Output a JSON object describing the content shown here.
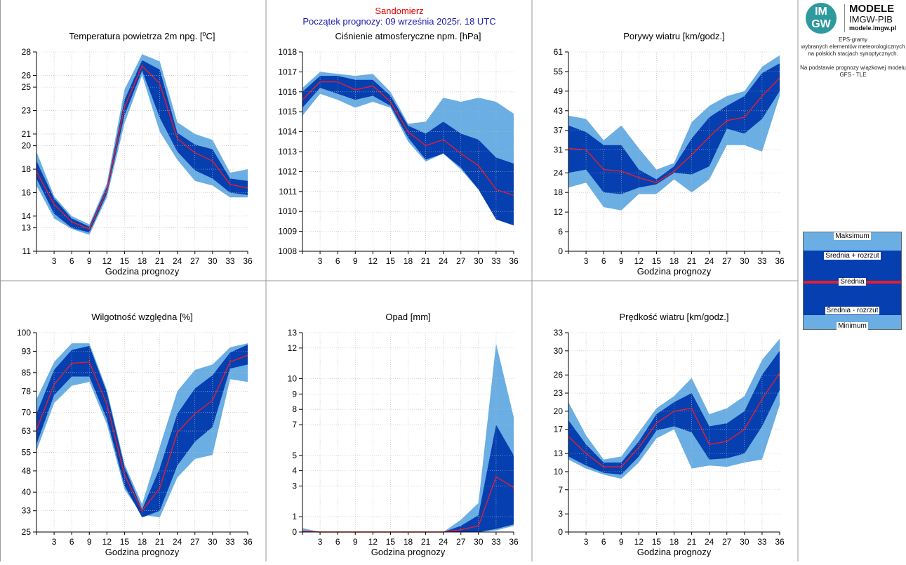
{
  "header": {
    "location": "Sandomierz",
    "forecast_start": "Początek prognozy: 09 września 2025r. 18 UTC"
  },
  "logo": {
    "badge_top": "IM",
    "badge_bottom": "GW",
    "title": "MODELE",
    "subtitle": "IMGW-PIB",
    "url": "modele.imgw.pl"
  },
  "description": {
    "line1": "EPS-gramy",
    "line2": "wybranych elementów meteorologicznych",
    "line3": "na polskich stacjach  synoptycznych.",
    "line4": "Na podstawie prognozy wiązkowej modelu",
    "line5": "GFS - TLE"
  },
  "legend": {
    "max": "Maksimum",
    "mean_plus": "Średnia + rozrzut",
    "mean": "Średnia",
    "mean_minus": "Średnia - rozrzut",
    "min": "Minimum"
  },
  "colors": {
    "outer": "#6aaee3",
    "inner": "#063fb0",
    "mean": "#e51e2e"
  },
  "chart_data": [
    {
      "type": "area",
      "title": "Temperatura powietrza 2m npg. [",
      "title_sup": "o",
      "title_end": "C]",
      "xlabel": "Godzina prognozy",
      "x": [
        0,
        3,
        6,
        9,
        12,
        15,
        18,
        21,
        24,
        27,
        30,
        33,
        36
      ],
      "yticks": [
        11,
        13,
        14,
        16,
        18,
        20,
        21,
        23,
        25,
        26,
        28
      ],
      "ylim": [
        11,
        28
      ],
      "min": [
        16.6,
        13.8,
        12.9,
        12.4,
        15.6,
        21.9,
        26.0,
        21.2,
        18.8,
        17.0,
        16.6,
        15.6,
        15.6
      ],
      "lo": [
        17.2,
        14.2,
        13.0,
        12.6,
        15.9,
        22.6,
        26.4,
        22.4,
        19.5,
        17.9,
        17.2,
        16.0,
        15.8
      ],
      "mean": [
        17.8,
        15.0,
        13.5,
        12.9,
        16.2,
        23.3,
        26.8,
        25.3,
        20.6,
        19.4,
        18.7,
        16.7,
        16.4
      ],
      "hi": [
        18.7,
        15.5,
        13.8,
        13.1,
        16.5,
        23.9,
        27.3,
        26.5,
        21.1,
        20.1,
        19.7,
        17.2,
        17.0
      ],
      "max": [
        19.5,
        15.7,
        14.0,
        13.3,
        16.8,
        24.8,
        27.8,
        27.2,
        22.0,
        21.0,
        20.5,
        17.7,
        18.0
      ]
    },
    {
      "type": "area",
      "title": "Ciśnienie atmosferyczne npm. [hPa]",
      "title_sup": "",
      "title_end": "",
      "xlabel": "",
      "x": [
        0,
        3,
        6,
        9,
        12,
        15,
        18,
        21,
        24,
        27,
        30,
        33,
        36
      ],
      "yticks": [
        1008,
        1009,
        1010,
        1011,
        1012,
        1013,
        1014,
        1015,
        1016,
        1017,
        1018
      ],
      "ylim": [
        1008,
        1018
      ],
      "min": [
        1014.8,
        1015.9,
        1015.6,
        1015.2,
        1015.5,
        1015.2,
        1013.5,
        1012.5,
        1012.9,
        1012.1,
        1011.1,
        1009.6,
        1009.3
      ],
      "lo": [
        1015.2,
        1016.2,
        1015.9,
        1015.6,
        1015.8,
        1015.3,
        1013.7,
        1012.6,
        1012.9,
        1012.2,
        1011.1,
        1009.6,
        1009.3
      ],
      "mean": [
        1015.6,
        1016.5,
        1016.5,
        1016.1,
        1016.3,
        1015.5,
        1014.0,
        1013.3,
        1013.6,
        1012.9,
        1012.3,
        1011.1,
        1010.8
      ],
      "hi": [
        1016.0,
        1016.8,
        1016.8,
        1016.6,
        1016.6,
        1015.8,
        1014.3,
        1013.9,
        1014.5,
        1013.9,
        1013.6,
        1012.7,
        1012.4
      ],
      "max": [
        1016.2,
        1017.0,
        1016.9,
        1016.8,
        1016.9,
        1016.0,
        1014.4,
        1014.5,
        1015.7,
        1015.5,
        1015.7,
        1015.5,
        1014.9
      ]
    },
    {
      "type": "area",
      "title": "Porywy wiatru [km/godz.]",
      "title_sup": "",
      "title_end": "",
      "xlabel": "Godzina prognozy",
      "x": [
        0,
        3,
        6,
        9,
        12,
        15,
        18,
        21,
        24,
        27,
        30,
        33,
        36
      ],
      "yticks": [
        0,
        6,
        12,
        18,
        24,
        31,
        37,
        43,
        49,
        55,
        61
      ],
      "ylim": [
        0,
        61
      ],
      "min": [
        19.5,
        21.0,
        13.5,
        12.5,
        17.5,
        17.5,
        22.0,
        18.0,
        22.0,
        32.5,
        32.5,
        30.5,
        47.5
      ],
      "lo": [
        24.0,
        25.0,
        18.0,
        17.5,
        19.5,
        20.5,
        24.0,
        23.5,
        26.0,
        37.5,
        36.0,
        40.5,
        49.0
      ],
      "mean": [
        31.5,
        31.0,
        25.0,
        24.5,
        22.5,
        21.0,
        24.5,
        29.5,
        35.0,
        40.0,
        41.0,
        47.5,
        53.0
      ],
      "hi": [
        38.5,
        36.5,
        32.5,
        32.5,
        25.0,
        22.0,
        26.0,
        34.5,
        41.0,
        44.5,
        47.5,
        54.5,
        57.5
      ],
      "max": [
        41.5,
        40.5,
        34.0,
        38.5,
        31.5,
        25.0,
        27.0,
        39.5,
        44.5,
        47.5,
        49.0,
        56.5,
        60.0
      ]
    },
    {
      "type": "area",
      "title": "Wilgotność względna [%]",
      "title_sup": "",
      "title_end": "",
      "xlabel": "Godzina prognozy",
      "x": [
        0,
        3,
        6,
        9,
        12,
        15,
        18,
        21,
        24,
        27,
        30,
        33,
        36
      ],
      "yticks": [
        25,
        33,
        40,
        48,
        55,
        63,
        70,
        78,
        85,
        93,
        100
      ],
      "ylim": [
        25,
        100
      ],
      "min": [
        55.5,
        73.5,
        80.0,
        81.5,
        65.5,
        41.0,
        31.5,
        30.5,
        45.5,
        52.5,
        54.0,
        82.5,
        81.5
      ],
      "lo": [
        58.0,
        76.5,
        83.5,
        83.5,
        67.5,
        42.5,
        30.5,
        33.0,
        50.0,
        59.0,
        64.5,
        86.5,
        88.0
      ],
      "mean": [
        63.5,
        80.5,
        88.5,
        89.0,
        73.0,
        46.5,
        33.0,
        41.5,
        62.5,
        69.5,
        74.5,
        89.0,
        91.5
      ],
      "hi": [
        69.5,
        86.0,
        93.5,
        95.0,
        77.5,
        49.5,
        33.5,
        49.0,
        69.5,
        79.0,
        84.0,
        92.5,
        95.5
      ],
      "max": [
        75.0,
        89.0,
        96.0,
        96.0,
        78.5,
        50.5,
        35.5,
        57.0,
        78.0,
        86.0,
        88.0,
        94.5,
        96.0
      ]
    },
    {
      "type": "area",
      "title": "Opad [mm]",
      "title_sup": "",
      "title_end": "",
      "xlabel": "Godzina prognozy",
      "x": [
        0,
        3,
        6,
        9,
        12,
        15,
        18,
        21,
        24,
        27,
        30,
        33,
        36
      ],
      "yticks": [
        0,
        1,
        3,
        4,
        5,
        7,
        8,
        9,
        10,
        12,
        13
      ],
      "ylim": [
        0,
        13
      ],
      "min": [
        0,
        0,
        0,
        0,
        0,
        0,
        0,
        0,
        0,
        0,
        0,
        0.1,
        0.4
      ],
      "lo": [
        0,
        0,
        0,
        0,
        0,
        0,
        0,
        0,
        0,
        0,
        0,
        0.2,
        0.5
      ],
      "mean": [
        0.05,
        0,
        0,
        0,
        0,
        0,
        0,
        0,
        0,
        0.15,
        0.4,
        3.6,
        2.9
      ],
      "hi": [
        0,
        0,
        0,
        0,
        0,
        0,
        0,
        0,
        0,
        0.4,
        1.1,
        7.0,
        5.0
      ],
      "max": [
        0.25,
        0,
        0,
        0,
        0,
        0,
        0,
        0,
        0,
        0.8,
        1.9,
        12.3,
        7.5
      ]
    },
    {
      "type": "area",
      "title": "Prędkość wiatru [km/godz.]",
      "title_sup": "",
      "title_end": "",
      "xlabel": "Godzina prognozy",
      "x": [
        0,
        3,
        6,
        9,
        12,
        15,
        18,
        21,
        24,
        27,
        30,
        33,
        36
      ],
      "yticks": [
        0,
        3,
        7,
        10,
        13,
        17,
        20,
        23,
        26,
        30,
        33
      ],
      "ylim": [
        0,
        33
      ],
      "min": [
        12.0,
        10.5,
        9.5,
        8.8,
        11.5,
        15.5,
        17.0,
        10.5,
        11.0,
        10.8,
        11.5,
        12.0,
        21.0
      ],
      "lo": [
        12.5,
        11.0,
        9.8,
        9.5,
        12.5,
        16.8,
        17.5,
        16.5,
        12.0,
        12.2,
        13.0,
        17.5,
        23.5
      ],
      "mean": [
        15.8,
        13.0,
        10.8,
        10.8,
        14.0,
        18.0,
        20.0,
        20.5,
        14.5,
        15.0,
        17.0,
        22.0,
        26.3
      ],
      "hi": [
        18.5,
        14.5,
        11.5,
        11.5,
        15.0,
        19.5,
        21.5,
        23.0,
        17.5,
        18.0,
        20.0,
        26.0,
        30.0
      ],
      "max": [
        21.5,
        16.0,
        12.0,
        12.5,
        16.5,
        20.5,
        22.5,
        25.5,
        19.5,
        20.5,
        22.5,
        28.5,
        32.0
      ]
    }
  ]
}
